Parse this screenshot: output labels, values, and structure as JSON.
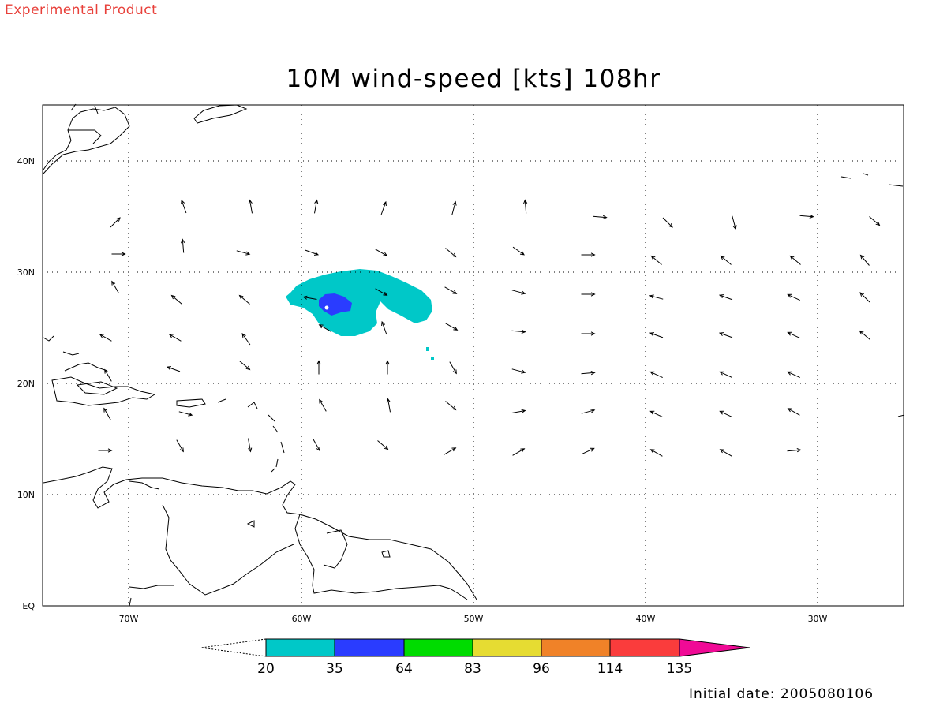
{
  "header": {
    "experimental": "Experimental Product",
    "title": "10M wind-speed [kts] 108hr",
    "initial_date": "Initial date: 2005080106"
  },
  "map": {
    "lon_range": [
      -75,
      -25
    ],
    "lat_range": [
      0,
      45
    ],
    "lon_ticks": [
      "70W",
      "60W",
      "50W",
      "40W",
      "30W"
    ],
    "lat_ticks": [
      "EQ",
      "10N",
      "20N",
      "30N",
      "40N"
    ],
    "grid": "dotted",
    "wind_field": {
      "max_category": "35-64",
      "colors_shown": [
        "#00c8c8",
        "#2a3cff"
      ]
    }
  },
  "colorbar": {
    "labels": [
      "20",
      "35",
      "64",
      "83",
      "96",
      "114",
      "135"
    ],
    "colors": [
      "#00c8c8",
      "#2a3cff",
      "#00dc00",
      "#e6dc32",
      "#f08228",
      "#fa3c3c",
      "#f00a96"
    ]
  }
}
